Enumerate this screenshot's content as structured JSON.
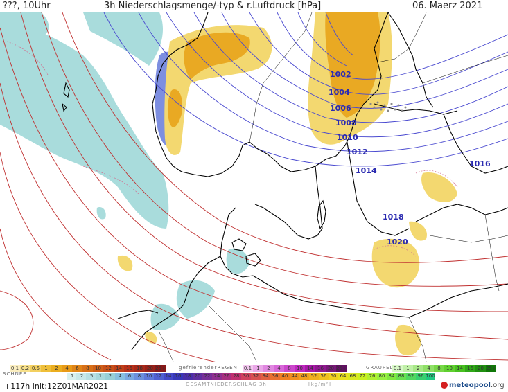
{
  "header": {
    "left": "???, 10Uhr",
    "title": "3h Niederschlagsmenge/-typ & r.Luftdruck [hPa]",
    "date": "06. Maerz 2021"
  },
  "isobar_labels": [
    "1002",
    "1004",
    "1006",
    "1008",
    "1010",
    "1012",
    "1014",
    "1016",
    "1018",
    "1020"
  ],
  "legend": {
    "rain_values": [
      "0.1",
      "0.2",
      "0.5",
      "1",
      "2",
      "4",
      "6",
      "8",
      "10",
      "12",
      "14",
      "16",
      "18",
      "20",
      "25+"
    ],
    "snow_label": "SCHNEE",
    "snow_values": [
      ".1",
      ".2",
      ".5",
      "1",
      "2",
      "4",
      "6",
      "8",
      "10",
      "12",
      "14",
      "16",
      "18",
      "20",
      "22",
      "24",
      "26",
      "28",
      "30",
      "32",
      "34",
      "36",
      "40",
      "44",
      "48",
      "52",
      "56",
      "60",
      "64",
      "68",
      "72",
      "76",
      "80",
      "84",
      "88",
      "92",
      "96",
      "100"
    ],
    "freezing_label": "gefrierenderREGEN",
    "freezing_values": [
      "0.1",
      "1",
      "2",
      "4",
      "8",
      "10",
      "14",
      "16",
      "20",
      "25+"
    ],
    "graupel_label": "GRAUPEL",
    "graupel_values": [
      "0.1",
      "1",
      "2",
      "4",
      "8",
      "10",
      "14",
      "16",
      "20",
      "25+"
    ],
    "total_label": "GESAMTNIEDERSCHLAG 3h",
    "unit": "[kg/m²]"
  },
  "footer": {
    "run": "+117h Init:12Z01MAR2021",
    "logo": "meteopool",
    "logo_suffix": ".org"
  },
  "colors": {
    "rain_yellow": "#f2d46a",
    "rain_orange": "#e8a81c",
    "snow": "#a8dcdc",
    "snow_blue": "#7b8de0",
    "isobar_low": "#4a4ad0",
    "isobar_high": "#c03030",
    "coast": "#000000"
  }
}
